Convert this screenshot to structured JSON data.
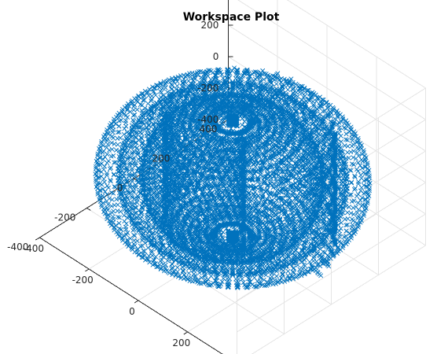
{
  "chart_data": {
    "type": "scatter",
    "title": "Workspace Plot",
    "xlabel": "",
    "ylabel": "",
    "zlabel": "",
    "view": "3d-isometric",
    "grid": true,
    "marker": "x",
    "marker_color": "#0072BD",
    "x_ticks": [
      -400,
      -200,
      0,
      200,
      400
    ],
    "y_ticks": [
      -400,
      -200,
      0,
      200,
      400
    ],
    "z_ticks": [
      -400,
      -200,
      0,
      200,
      400,
      600
    ],
    "xlim": [
      -400,
      400
    ],
    "ylim": [
      -400,
      400
    ],
    "zlim": [
      -400,
      600
    ],
    "series": [
      {
        "shape": "toroidal workspace point cloud",
        "x_range": [
          -390,
          390
        ],
        "y_range": [
          -390,
          390
        ],
        "z_range": [
          -390,
          390
        ]
      }
    ]
  },
  "labels": {
    "x_ticks": [
      "-400",
      "-200",
      "0",
      "200",
      "400"
    ],
    "y_ticks": [
      "400",
      "200",
      "0",
      "-200",
      "-400"
    ],
    "z_ticks": [
      "600",
      "400",
      "200",
      "0",
      "-200",
      "-400"
    ]
  }
}
